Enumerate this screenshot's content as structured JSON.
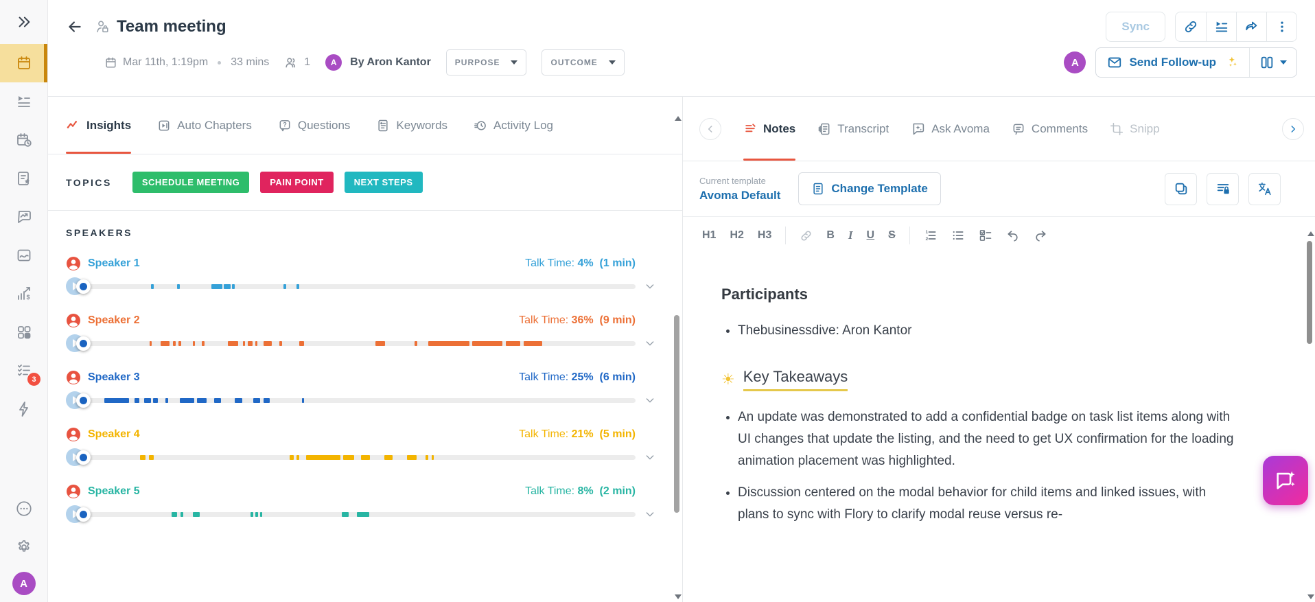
{
  "sidebar": {
    "badge_count": "3",
    "avatar_initial": "A",
    "items": [
      {
        "icon": "calendar"
      },
      {
        "icon": "playlist"
      },
      {
        "icon": "scheduler"
      },
      {
        "icon": "smart-note"
      },
      {
        "icon": "snippet-trend"
      },
      {
        "icon": "recording"
      },
      {
        "icon": "revenue-analytics"
      },
      {
        "icon": "dashboard-grid"
      },
      {
        "icon": "scorecard-checklist"
      },
      {
        "icon": "automation-bolt"
      },
      {
        "icon": "more-ellipsis"
      },
      {
        "icon": "settings-gear"
      }
    ]
  },
  "header": {
    "title": "Team meeting",
    "meta": {
      "date": "Mar 11th, 1:19pm",
      "duration": "33 mins",
      "attendee_count": "1",
      "organizer_avatar_initial": "A",
      "organizer": "By Aron Kantor"
    },
    "purpose_button": "PURPOSE",
    "outcome_button": "OUTCOME",
    "sync_button": "Sync",
    "send_followup_button": "Send Follow-up",
    "user_avatar_initial": "A"
  },
  "insights_panel": {
    "tabs": [
      {
        "label": "Insights",
        "active": true
      },
      {
        "label": "Auto Chapters",
        "active": false
      },
      {
        "label": "Questions",
        "active": false
      },
      {
        "label": "Keywords",
        "active": false
      },
      {
        "label": "Activity Log",
        "active": false
      }
    ],
    "topics": {
      "label": "TOPICS",
      "pills": [
        {
          "label": "SCHEDULE MEETING",
          "color": "#2ebd6b"
        },
        {
          "label": "PAIN POINT",
          "color": "#e0245e"
        },
        {
          "label": "NEXT STEPS",
          "color": "#21b8c0"
        }
      ]
    },
    "speakers": {
      "label": "SPEAKERS",
      "talk_time_label": "Talk Time:",
      "rows": [
        {
          "name": "Speaker 1",
          "percent": "4%",
          "minutes": "(1 min)",
          "color": "#35a1d8",
          "segments": [
            [
              11.8,
              0.5
            ],
            [
              16.5,
              0.5
            ],
            [
              22.8,
              2.0
            ],
            [
              25.0,
              1.2
            ],
            [
              26.5,
              0.5
            ],
            [
              35.9,
              0.5
            ],
            [
              38.3,
              0.5
            ]
          ]
        },
        {
          "name": "Speaker 2",
          "percent": "36%",
          "minutes": "(9 min)",
          "color": "#ec7036",
          "segments": [
            [
              11.5,
              0.4
            ],
            [
              13.5,
              1.6
            ],
            [
              15.8,
              0.4
            ],
            [
              16.8,
              0.4
            ],
            [
              19.4,
              0.4
            ],
            [
              21.0,
              0.5
            ],
            [
              25.8,
              1.8
            ],
            [
              28.5,
              0.4
            ],
            [
              29.4,
              0.8
            ],
            [
              30.7,
              0.4
            ],
            [
              32.3,
              1.4
            ],
            [
              35.1,
              0.5
            ],
            [
              38.7,
              0.9
            ],
            [
              52.6,
              1.8
            ],
            [
              59.8,
              0.4
            ],
            [
              62.2,
              7.5
            ],
            [
              70.2,
              5.6
            ],
            [
              76.4,
              2.6
            ],
            [
              79.6,
              3.4
            ]
          ]
        },
        {
          "name": "Speaker 3",
          "percent": "25%",
          "minutes": "(6 min)",
          "color": "#2068c6",
          "segments": [
            [
              3.2,
              4.6
            ],
            [
              8.8,
              0.8
            ],
            [
              10.5,
              1.2
            ],
            [
              12.1,
              0.9
            ],
            [
              14.4,
              0.5
            ],
            [
              17.0,
              2.6
            ],
            [
              20.1,
              1.8
            ],
            [
              23.3,
              1.2
            ],
            [
              27.0,
              1.4
            ],
            [
              30.4,
              1.2
            ],
            [
              32.2,
              1.2
            ],
            [
              39.2,
              0.4
            ]
          ]
        },
        {
          "name": "Speaker 4",
          "percent": "21%",
          "minutes": "(5 min)",
          "color": "#f3b400",
          "segments": [
            [
              9.8,
              0.9
            ],
            [
              11.4,
              0.9
            ],
            [
              37.0,
              0.7
            ],
            [
              38.2,
              0.6
            ],
            [
              40.0,
              6.2
            ],
            [
              46.8,
              1.9
            ],
            [
              50.0,
              1.6
            ],
            [
              54.3,
              1.4
            ],
            [
              58.4,
              1.7
            ],
            [
              61.8,
              0.5
            ],
            [
              62.9,
              0.4
            ]
          ]
        },
        {
          "name": "Speaker 5",
          "percent": "8%",
          "minutes": "(2 min)",
          "color": "#28b5a3",
          "segments": [
            [
              15.5,
              1.0
            ],
            [
              17.1,
              0.5
            ],
            [
              19.4,
              1.2
            ],
            [
              29.9,
              0.5
            ],
            [
              30.8,
              0.5
            ],
            [
              31.6,
              0.4
            ],
            [
              46.5,
              1.2
            ],
            [
              49.3,
              2.2
            ]
          ]
        }
      ]
    }
  },
  "notes_panel": {
    "tabs": [
      {
        "label": "Notes",
        "active": true
      },
      {
        "label": "Transcript",
        "active": false
      },
      {
        "label": "Ask Avoma",
        "active": false
      },
      {
        "label": "Comments",
        "active": false
      },
      {
        "label": "Snipp",
        "active": false
      }
    ],
    "template_bar": {
      "current_label": "Current template",
      "template_name": "Avoma Default",
      "change_button": "Change Template"
    },
    "toolbar": {
      "h1": "H1",
      "h2": "H2",
      "h3": "H3",
      "bold": "B",
      "italic": "I",
      "underline": "U",
      "strike": "S"
    },
    "content": {
      "participants_heading": "Participants",
      "participants": [
        "Thebusinessdive: Aron Kantor"
      ],
      "takeaways_heading": "Key Takeaways",
      "takeaways": [
        "An update was demonstrated to add a confidential badge on task list items along with UI changes that update the listing, and the need to get UX confirmation for the loading animation placement was highlighted.",
        "Discussion centered on the modal behavior for child items and linked issues, with plans to sync with Flory to clarify modal reuse versus re-"
      ]
    }
  },
  "colors": {
    "accent_blue": "#1d6fae",
    "active_orange": "#e8563f",
    "sidebar_active": "#c9860b",
    "badge_red": "#f25041",
    "ai_gradient_start": "#a93ad8",
    "ai_gradient_end": "#f12b9e"
  }
}
